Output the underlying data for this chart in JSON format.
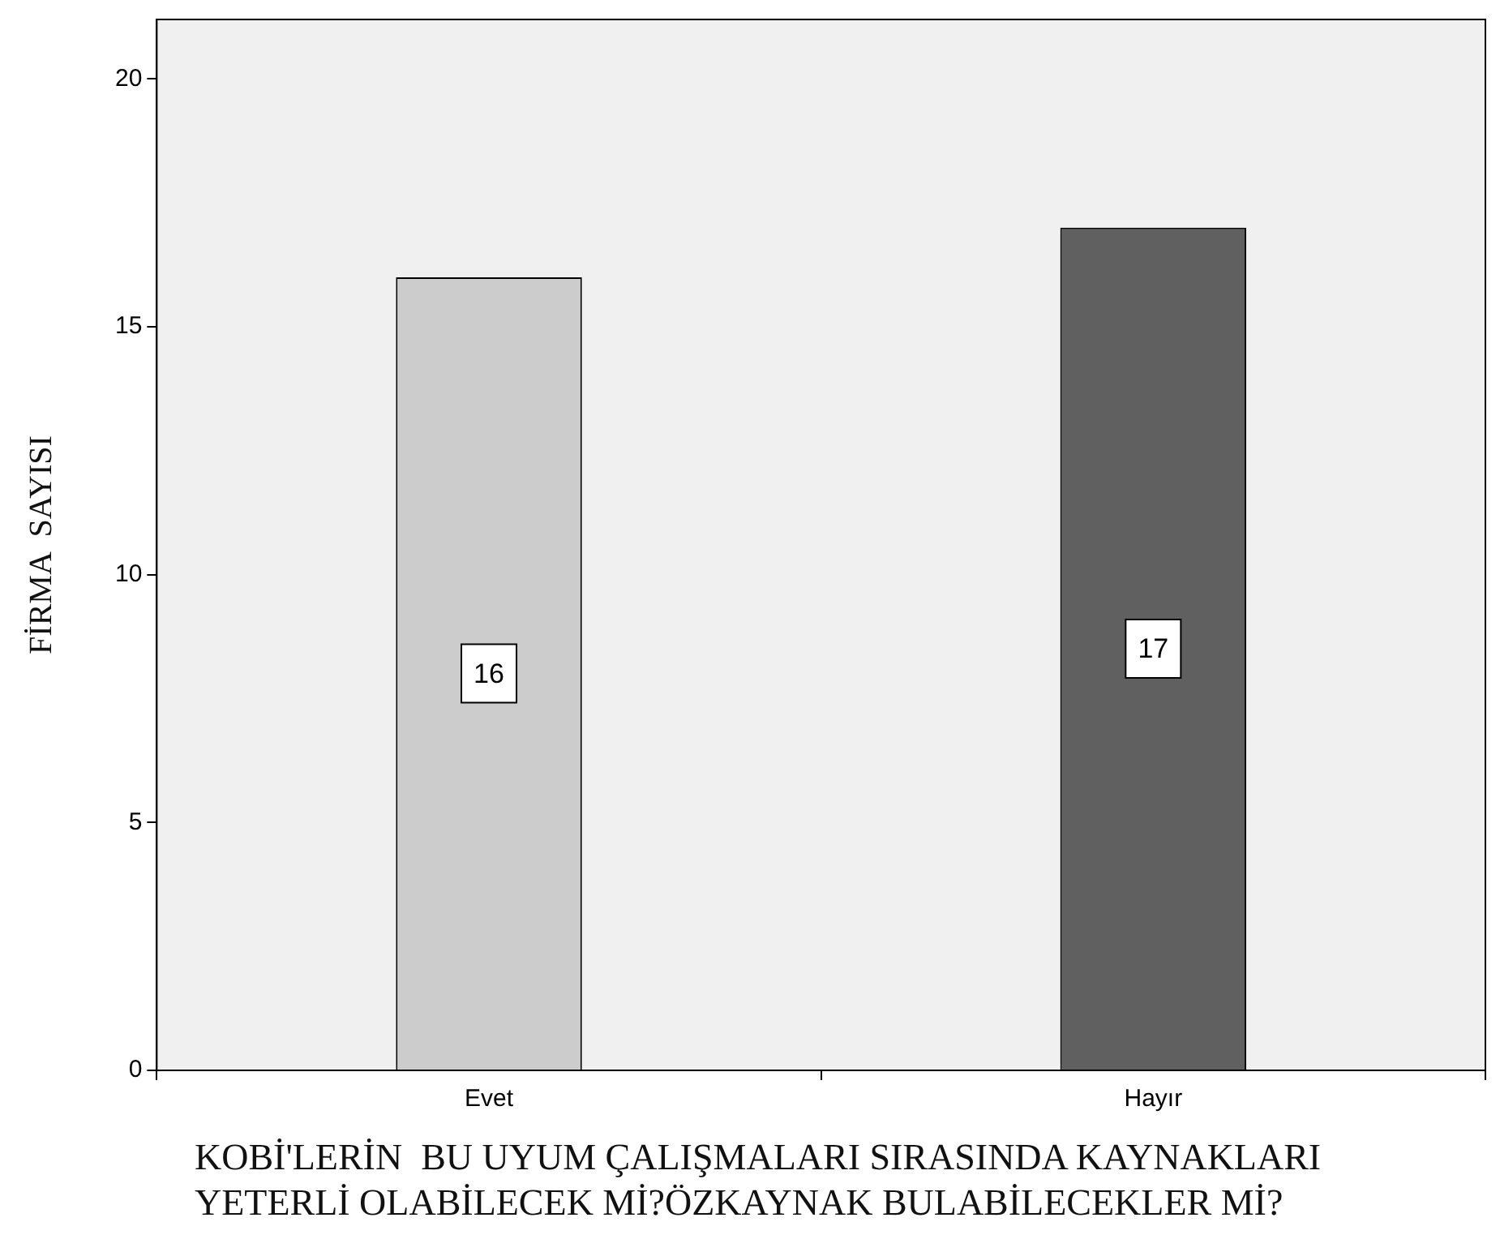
{
  "chart_data": {
    "type": "bar",
    "xlabel": "KOBİ'LERİN  BU UYUM ÇALIŞMALARI SIRASINDA KAYNAKLARI YETERLİ OLABİLECEK Mİ?ÖZKAYNAK BULABİLECEKLER Mİ?",
    "ylabel": "FİRMA  SAYISI",
    "categories": [
      "Evet",
      "Hayır"
    ],
    "values": [
      16,
      17
    ],
    "colors": [
      "#cccccc",
      "#606060"
    ],
    "ylim": [
      0,
      21.2
    ],
    "yticks": [
      0,
      5,
      10,
      15,
      20
    ],
    "legend": false,
    "data_labels": true
  }
}
